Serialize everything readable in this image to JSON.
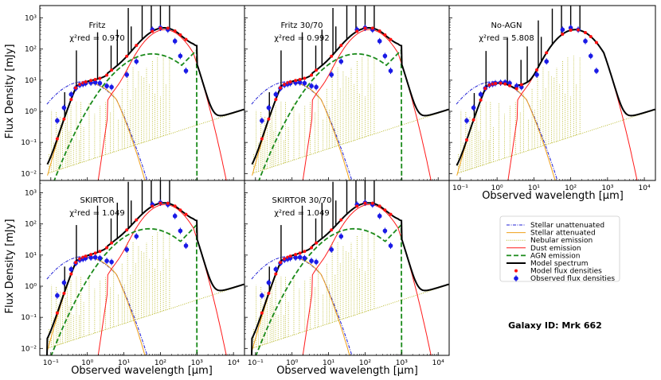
{
  "figure": {
    "xlabel": "Observed wavelength [μm]",
    "ylabel": "Flux Density [mJy]",
    "galaxy_label": "Galaxy ID: Mrk  662"
  },
  "colors": {
    "stellar_unattenuated": "#1f1fd6",
    "stellar_attenuated": "#f0a018",
    "nebular": "#b5b51e",
    "dust": "#ff1a1a",
    "agn": "#1a8a1a",
    "model": "#000000",
    "model_points": "#ff1010",
    "observed": "#1a1ae6"
  },
  "legend": [
    {
      "key": "stellar_unattenuated",
      "label": "Stellar unattenuated",
      "style": "dashdot"
    },
    {
      "key": "stellar_attenuated",
      "label": "Stellar attenuated",
      "style": "solid"
    },
    {
      "key": "nebular",
      "label": "Nebular emission",
      "style": "dotted"
    },
    {
      "key": "dust",
      "label": "Dust emission",
      "style": "solid"
    },
    {
      "key": "agn",
      "label": "AGN emission",
      "style": "dashed"
    },
    {
      "key": "model",
      "label": "Model spectrum",
      "style": "thick"
    },
    {
      "key": "model_points",
      "label": "Model flux densities",
      "style": "dot"
    },
    {
      "key": "observed",
      "label": "Observed flux densities",
      "style": "errdot"
    }
  ],
  "chart_data": [
    {
      "type": "line",
      "title": "Fritz",
      "chi2_label": "χ²red = 0.970",
      "chi2": 0.97,
      "agn": true,
      "agn_peak_um": 60,
      "xlim": [
        0.05,
        20000
      ],
      "ylim": [
        0.006,
        2500
      ],
      "xscale": "log",
      "yscale": "log",
      "xticks": [
        "10⁻¹",
        "10⁰",
        "10¹",
        "10²",
        "10³",
        "10⁴"
      ],
      "yticks": [
        "10⁻²",
        "10⁻¹",
        "10⁰",
        "10¹",
        "10²",
        "10³"
      ],
      "show_xlabel": false,
      "show_ylabel": true
    },
    {
      "type": "line",
      "title": "Fritz 30/70",
      "chi2_label": "χ²red = 0.992",
      "chi2": 0.992,
      "agn": true,
      "agn_peak_um": 60,
      "xlim": [
        0.05,
        20000
      ],
      "ylim": [
        0.006,
        2500
      ],
      "xscale": "log",
      "yscale": "log",
      "xticks": [
        "10⁻¹",
        "10⁰",
        "10¹",
        "10²",
        "10³",
        "10⁴"
      ],
      "yticks": [],
      "show_xlabel": false,
      "show_ylabel": false
    },
    {
      "type": "line",
      "title": "No-AGN",
      "chi2_label": "χ²red = 5.808",
      "chi2": 5.808,
      "agn": false,
      "agn_peak_um": 0,
      "xlim": [
        0.05,
        20000
      ],
      "ylim": [
        0.006,
        2500
      ],
      "xscale": "log",
      "yscale": "log",
      "xticks": [
        "10⁻¹",
        "10⁰",
        "10¹",
        "10²",
        "10³",
        "10⁴"
      ],
      "yticks": [],
      "show_xlabel": true,
      "show_ylabel": false
    },
    {
      "type": "line",
      "title": "SKIRTOR",
      "chi2_label": "χ²red = 1.049",
      "chi2": 1.049,
      "agn": true,
      "agn_peak_um": 50,
      "xlim": [
        0.05,
        20000
      ],
      "ylim": [
        0.006,
        2500
      ],
      "xscale": "log",
      "yscale": "log",
      "xticks": [
        "10⁻¹",
        "10⁰",
        "10¹",
        "10²",
        "10³",
        "10⁴"
      ],
      "yticks": [
        "10⁻²",
        "10⁻¹",
        "10⁰",
        "10¹",
        "10²",
        "10³"
      ],
      "show_xlabel": true,
      "show_ylabel": true
    },
    {
      "type": "line",
      "title": "SKIRTOR 30/70",
      "chi2_label": "χ²red = 1.049",
      "chi2": 1.049,
      "agn": true,
      "agn_peak_um": 50,
      "xlim": [
        0.05,
        20000
      ],
      "ylim": [
        0.006,
        2500
      ],
      "xscale": "log",
      "yscale": "log",
      "xticks": [
        "10⁻¹",
        "10⁰",
        "10¹",
        "10²",
        "10³",
        "10⁴"
      ],
      "yticks": [],
      "show_xlabel": true,
      "show_ylabel": false
    }
  ],
  "observed_points": {
    "wavelength_um": [
      0.15,
      0.23,
      0.36,
      0.48,
      0.62,
      0.76,
      0.9,
      1.25,
      1.65,
      2.2,
      3.4,
      4.6,
      12,
      22,
      60,
      100,
      160,
      250,
      350,
      500
    ],
    "flux_mJy": [
      0.5,
      1.3,
      3.5,
      5.5,
      7.0,
      7.5,
      8.0,
      8.3,
      8.5,
      8.0,
      6.5,
      6.0,
      15,
      40,
      420,
      480,
      420,
      180,
      60,
      20
    ]
  }
}
